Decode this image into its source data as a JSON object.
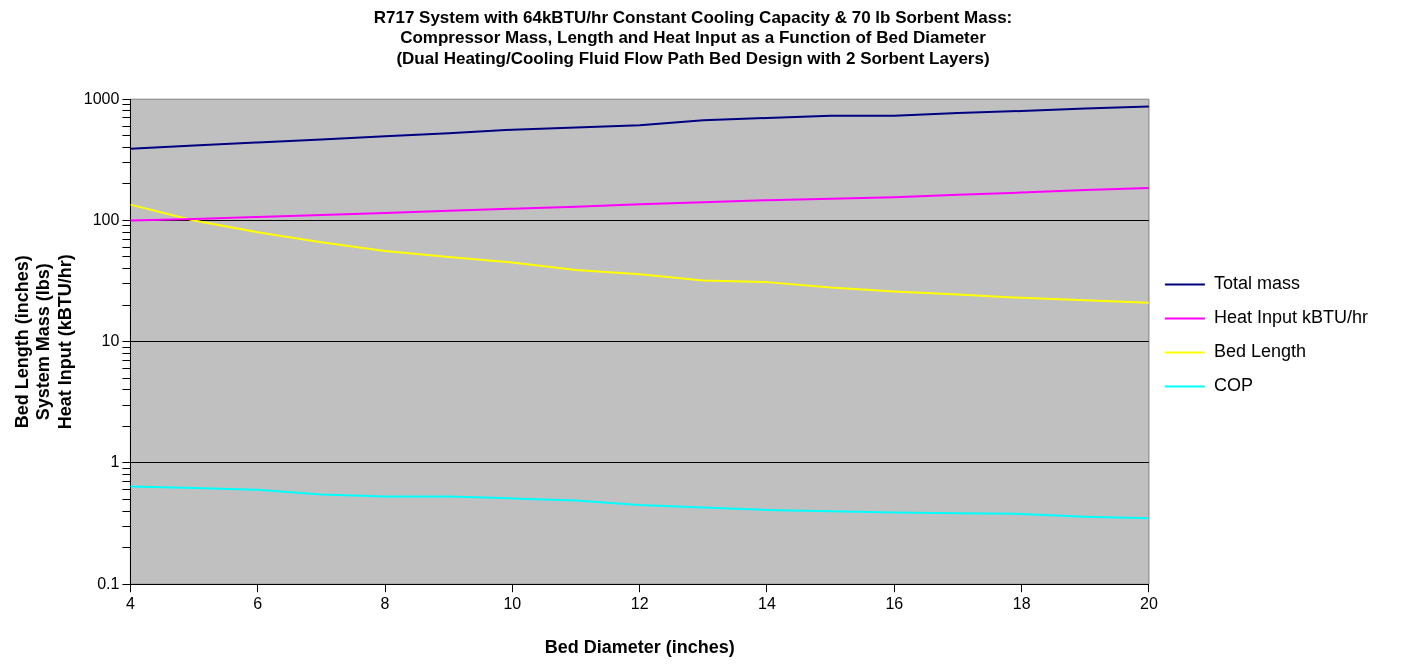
{
  "chart_data": {
    "type": "line",
    "title": "R717 System with 64kBTU/hr Constant Cooling Capacity & 70 lb Sorbent Mass:\nCompressor Mass, Length and Heat Input as a Function of Bed Diameter\n(Dual Heating/Cooling Fluid Flow Path Bed Design with 2 Sorbent Layers)",
    "xlabel": "Bed Diameter (inches)",
    "ylabel": "Bed Length (inches)\nSystem Mass (lbs)\nHeat Input (kBTU/hr)",
    "x": [
      4,
      5,
      6,
      7,
      8,
      9,
      10,
      11,
      12,
      13,
      14,
      15,
      16,
      17,
      18,
      19,
      20
    ],
    "series": [
      {
        "name": "Total mass",
        "color": "#000080",
        "values": [
          390,
          415,
          440,
          465,
          495,
          525,
          560,
          585,
          610,
          670,
          700,
          730,
          730,
          770,
          800,
          840,
          870
        ]
      },
      {
        "name": "Heat Input kBTU/hr",
        "color": "#ff00ff",
        "values": [
          100,
          103,
          107,
          111,
          115,
          120,
          125,
          130,
          136,
          141,
          147,
          151,
          155,
          163,
          170,
          178,
          185
        ]
      },
      {
        "name": "Bed Length",
        "color": "#ffff00",
        "values": [
          135,
          100,
          80,
          66,
          56,
          50,
          45,
          39,
          36,
          32,
          31,
          28,
          26,
          24.5,
          23,
          22,
          21
        ]
      },
      {
        "name": "COP",
        "color": "#00ffff",
        "values": [
          0.64,
          0.62,
          0.6,
          0.55,
          0.53,
          0.53,
          0.51,
          0.49,
          0.45,
          0.43,
          0.41,
          0.4,
          0.39,
          0.385,
          0.38,
          0.36,
          0.35
        ]
      }
    ],
    "xlim": [
      4,
      20
    ],
    "xticks": [
      4,
      6,
      8,
      10,
      12,
      14,
      16,
      18,
      20
    ],
    "ylim": [
      0.1,
      1000
    ],
    "yticks": [
      0.1,
      {
        "value": 0.2,
        "label": null
      },
      {
        "value": 0.3,
        "label": null
      },
      {
        "value": 0.4,
        "label": null
      },
      {
        "value": 0.5,
        "label": null
      },
      {
        "value": 0.6,
        "label": null
      },
      {
        "value": 0.7,
        "label": null
      },
      {
        "value": 0.8,
        "label": null
      },
      {
        "value": 0.9,
        "label": null
      },
      1,
      {
        "value": 2,
        "label": null
      },
      {
        "value": 3,
        "label": null
      },
      {
        "value": 4,
        "label": null
      },
      {
        "value": 5,
        "label": null
      },
      {
        "value": 6,
        "label": null
      },
      {
        "value": 7,
        "label": null
      },
      {
        "value": 8,
        "label": null
      },
      {
        "value": 9,
        "label": null
      },
      10,
      {
        "value": 20,
        "label": null
      },
      {
        "value": 30,
        "label": null
      },
      {
        "value": 40,
        "label": null
      },
      {
        "value": 50,
        "label": null
      },
      {
        "value": 60,
        "label": null
      },
      {
        "value": 70,
        "label": null
      },
      {
        "value": 80,
        "label": null
      },
      {
        "value": 90,
        "label": null
      },
      100,
      {
        "value": 200,
        "label": null
      },
      {
        "value": 300,
        "label": null
      },
      {
        "value": 400,
        "label": null
      },
      {
        "value": 500,
        "label": null
      },
      {
        "value": 600,
        "label": null
      },
      {
        "value": 700,
        "label": null
      },
      {
        "value": 800,
        "label": null
      },
      {
        "value": 900,
        "label": null
      },
      1000
    ],
    "log": "y",
    "grid": "y",
    "legend": "right",
    "marker": "none",
    "line_style": "solid"
  }
}
